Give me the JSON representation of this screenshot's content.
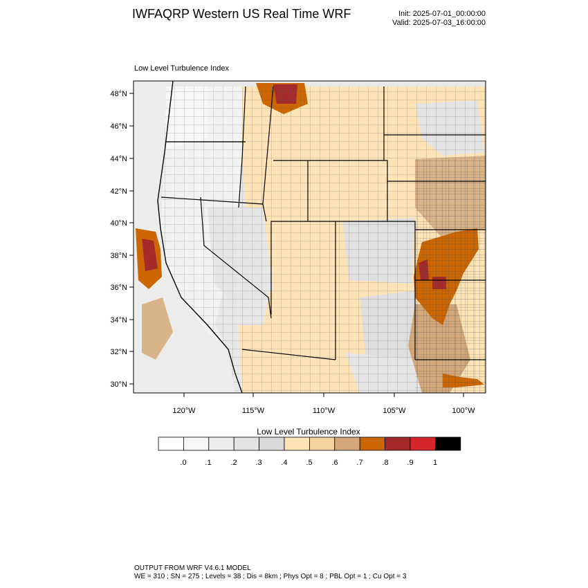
{
  "header": {
    "title": "IWFAQRP Western US Real Time WRF",
    "init": "Init: 2025-07-01_00:00:00",
    "valid": "Valid: 2025-07-03_16:00:00"
  },
  "plot": {
    "label": "Low Level Turbulence Index",
    "lat_labels": [
      "48°N",
      "46°N",
      "44°N",
      "42°N",
      "40°N",
      "38°N",
      "36°N",
      "34°N",
      "32°N",
      "30°N"
    ],
    "lon_labels": [
      "120°W",
      "115°W",
      "110°W",
      "105°W",
      "100°W"
    ]
  },
  "colorbar": {
    "title": "Low Level Turbulence Index",
    "labels": [
      ".0",
      ".1",
      ".2",
      ".3",
      ".4",
      ".5",
      ".6",
      ".7",
      ".8",
      ".9",
      "1"
    ],
    "colors": [
      "#ffffff",
      "#f7f7f7",
      "#eeeeee",
      "#e3e3e3",
      "#d9d9d9",
      "#fde3b5",
      "#f5d29e",
      "#d2a77a",
      "#cc6600",
      "#a52a2a",
      "#d6262b",
      "#000000"
    ]
  },
  "footer": {
    "line1": "OUTPUT FROM WRF V4.6.1 MODEL",
    "line2": "WE = 310 ; SN = 275 ; Levels = 38 ; Dis = 8km ; Phys Opt = 8 ; PBL Opt = 1 ; Cu Opt = 3"
  }
}
